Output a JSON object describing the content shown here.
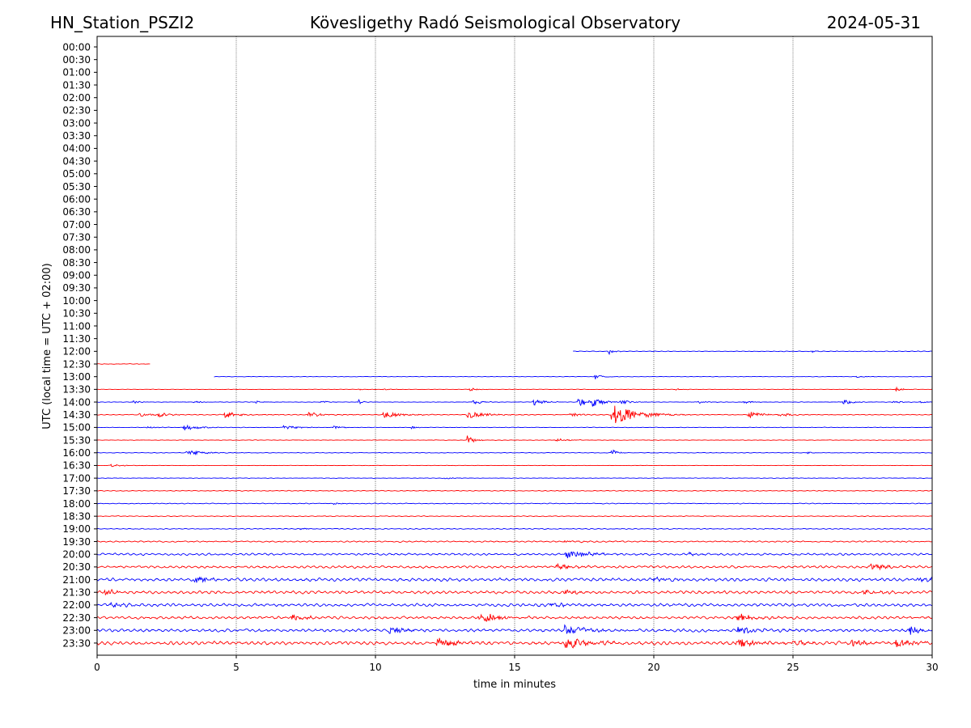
{
  "header": {
    "station": "HN_Station_PSZI2",
    "observatory": "Kövesligethy Radó Seismological Observatory",
    "date": "2024-05-31"
  },
  "chart_data": {
    "type": "line",
    "title": "Kövesligethy Radó Seismological Observatory",
    "xlabel": "time in minutes",
    "ylabel": "UTC (local time = UTC + 02:00)",
    "xlim": [
      0,
      30
    ],
    "x_ticks": [
      "0",
      "5",
      "10",
      "15",
      "20",
      "25",
      "30"
    ],
    "vertical_gridlines_at": [
      5,
      10,
      15,
      20,
      25
    ],
    "row_labels": [
      "00:00",
      "00:30",
      "01:00",
      "01:30",
      "02:00",
      "02:30",
      "03:00",
      "03:30",
      "04:00",
      "04:30",
      "05:00",
      "05:30",
      "06:00",
      "06:30",
      "07:00",
      "07:30",
      "08:00",
      "08:30",
      "09:00",
      "09:30",
      "10:00",
      "10:30",
      "11:00",
      "11:30",
      "12:00",
      "12:30",
      "13:00",
      "13:30",
      "14:00",
      "14:30",
      "15:00",
      "15:30",
      "16:00",
      "16:30",
      "17:00",
      "17:30",
      "18:00",
      "18:30",
      "19:00",
      "19:30",
      "20:00",
      "20:30",
      "21:00",
      "21:30",
      "22:00",
      "22:30",
      "23:00",
      "23:30"
    ],
    "colors": {
      "even": "#0000ff",
      "odd": "#ff0000"
    },
    "traces": [
      {
        "row": "12:00",
        "start": 17.1,
        "end": 30,
        "noise": 0.25,
        "events": [
          {
            "t": 18.4,
            "amp": 1.0,
            "dur": 0.15
          },
          {
            "t": 25.7,
            "amp": 0.4,
            "dur": 0.2
          }
        ]
      },
      {
        "row": "12:30",
        "start": 0,
        "end": 1.9,
        "noise": 0.25,
        "events": []
      },
      {
        "row": "13:00",
        "start": 4.2,
        "end": 30,
        "noise": 0.15,
        "events": [
          {
            "t": 17.9,
            "amp": 1.0,
            "dur": 0.2
          },
          {
            "t": 27.3,
            "amp": 0.3,
            "dur": 0.3
          }
        ]
      },
      {
        "row": "13:30",
        "start": 0,
        "end": 30,
        "noise": 0.15,
        "events": [
          {
            "t": 9.4,
            "amp": 0.3,
            "dur": 0.2
          },
          {
            "t": 10.3,
            "amp": 0.35,
            "dur": 0.2
          },
          {
            "t": 13.4,
            "amp": 0.5,
            "dur": 0.3
          },
          {
            "t": 20.8,
            "amp": 0.3,
            "dur": 0.2
          },
          {
            "t": 28.7,
            "amp": 0.6,
            "dur": 0.3
          }
        ]
      },
      {
        "row": "14:00",
        "start": 0,
        "end": 30,
        "noise": 0.2,
        "events": [
          {
            "t": 1.3,
            "amp": 0.4,
            "dur": 0.3
          },
          {
            "t": 3.5,
            "amp": 0.4,
            "dur": 0.3
          },
          {
            "t": 5.7,
            "amp": 0.4,
            "dur": 0.3
          },
          {
            "t": 8.0,
            "amp": 0.5,
            "dur": 0.3
          },
          {
            "t": 9.4,
            "amp": 0.8,
            "dur": 0.15
          },
          {
            "t": 13.5,
            "amp": 0.8,
            "dur": 0.3
          },
          {
            "t": 15.7,
            "amp": 1.2,
            "dur": 0.3
          },
          {
            "t": 17.3,
            "amp": 2.0,
            "dur": 0.3
          },
          {
            "t": 17.8,
            "amp": 2.0,
            "dur": 0.3
          },
          {
            "t": 18.8,
            "amp": 0.9,
            "dur": 0.3
          },
          {
            "t": 21.6,
            "amp": 0.5,
            "dur": 0.3
          },
          {
            "t": 23.2,
            "amp": 0.6,
            "dur": 0.3
          },
          {
            "t": 26.8,
            "amp": 1.0,
            "dur": 0.3
          },
          {
            "t": 28.6,
            "amp": 0.4,
            "dur": 0.3
          },
          {
            "t": 29.6,
            "amp": 0.3,
            "dur": 0.3
          }
        ]
      },
      {
        "row": "14:30",
        "start": 0,
        "end": 30,
        "noise": 0.3,
        "events": [
          {
            "t": 1.5,
            "amp": 0.7,
            "dur": 0.4
          },
          {
            "t": 2.2,
            "amp": 0.7,
            "dur": 0.4
          },
          {
            "t": 4.6,
            "amp": 1.0,
            "dur": 0.5
          },
          {
            "t": 7.6,
            "amp": 0.8,
            "dur": 0.5
          },
          {
            "t": 10.3,
            "amp": 1.3,
            "dur": 0.5
          },
          {
            "t": 13.3,
            "amp": 1.3,
            "dur": 0.6
          },
          {
            "t": 17.0,
            "amp": 0.6,
            "dur": 0.5
          },
          {
            "t": 18.5,
            "amp": 3.5,
            "dur": 0.8
          },
          {
            "t": 23.4,
            "amp": 1.2,
            "dur": 0.4
          },
          {
            "t": 24.5,
            "amp": 0.6,
            "dur": 0.5
          }
        ]
      },
      {
        "row": "15:00",
        "start": 0,
        "end": 30,
        "noise": 0.2,
        "events": [
          {
            "t": 1.8,
            "amp": 0.3,
            "dur": 0.4
          },
          {
            "t": 3.1,
            "amp": 1.0,
            "dur": 0.5
          },
          {
            "t": 6.7,
            "amp": 0.7,
            "dur": 0.5
          },
          {
            "t": 8.5,
            "amp": 0.5,
            "dur": 0.3
          },
          {
            "t": 11.3,
            "amp": 0.5,
            "dur": 0.2
          }
        ]
      },
      {
        "row": "15:30",
        "start": 0,
        "end": 30,
        "noise": 0.2,
        "events": [
          {
            "t": 13.3,
            "amp": 2.0,
            "dur": 0.2
          },
          {
            "t": 16.5,
            "amp": 0.5,
            "dur": 0.4
          }
        ]
      },
      {
        "row": "16:00",
        "start": 0,
        "end": 30,
        "noise": 0.2,
        "events": [
          {
            "t": 3.2,
            "amp": 0.9,
            "dur": 0.6
          },
          {
            "t": 18.5,
            "amp": 1.5,
            "dur": 0.15
          },
          {
            "t": 25.5,
            "amp": 0.3,
            "dur": 0.2
          }
        ]
      },
      {
        "row": "16:30",
        "start": 0,
        "end": 30,
        "noise": 0.15,
        "events": [
          {
            "t": 0.5,
            "amp": 0.4,
            "dur": 0.4
          }
        ]
      },
      {
        "row": "17:00",
        "start": 0,
        "end": 30,
        "noise": 0.2,
        "events": [
          {
            "t": 12.5,
            "amp": 0.3,
            "dur": 0.3
          }
        ]
      },
      {
        "row": "17:30",
        "start": 0,
        "end": 30,
        "noise": 0.3,
        "events": []
      },
      {
        "row": "18:00",
        "start": 0,
        "end": 30,
        "noise": 0.3,
        "events": [
          {
            "t": 8.5,
            "amp": 0.3,
            "dur": 0.3
          }
        ]
      },
      {
        "row": "18:30",
        "start": 0,
        "end": 30,
        "noise": 0.3,
        "events": []
      },
      {
        "row": "19:00",
        "start": 0,
        "end": 30,
        "noise": 0.35,
        "events": [
          {
            "t": 7.2,
            "amp": 0.3,
            "dur": 0.3
          }
        ]
      },
      {
        "row": "19:30",
        "start": 0,
        "end": 30,
        "noise": 0.5,
        "events": [
          {
            "t": 16.8,
            "amp": 0.5,
            "dur": 0.5
          }
        ]
      },
      {
        "row": "20:00",
        "start": 0,
        "end": 30,
        "noise": 0.8,
        "events": [
          {
            "t": 16.8,
            "amp": 1.5,
            "dur": 0.8
          },
          {
            "t": 21.2,
            "amp": 0.5,
            "dur": 0.4
          }
        ]
      },
      {
        "row": "20:30",
        "start": 0,
        "end": 30,
        "noise": 0.9,
        "events": [
          {
            "t": 16.5,
            "amp": 0.8,
            "dur": 0.6
          },
          {
            "t": 27.8,
            "amp": 0.8,
            "dur": 0.6
          }
        ]
      },
      {
        "row": "21:00",
        "start": 0,
        "end": 30,
        "noise": 1.2,
        "events": [
          {
            "t": 3.5,
            "amp": 0.8,
            "dur": 0.6
          },
          {
            "t": 20.0,
            "amp": 0.6,
            "dur": 0.6
          },
          {
            "t": 29.5,
            "amp": 0.8,
            "dur": 0.6
          }
        ]
      },
      {
        "row": "21:30",
        "start": 0,
        "end": 30,
        "noise": 1.1,
        "events": [
          {
            "t": 0.3,
            "amp": 1.0,
            "dur": 0.4
          },
          {
            "t": 16.8,
            "amp": 0.8,
            "dur": 0.5
          },
          {
            "t": 27.5,
            "amp": 0.8,
            "dur": 0.5
          }
        ]
      },
      {
        "row": "22:00",
        "start": 0,
        "end": 30,
        "noise": 1.1,
        "events": [
          {
            "t": 0.5,
            "amp": 0.8,
            "dur": 0.5
          },
          {
            "t": 16.3,
            "amp": 0.8,
            "dur": 0.6
          }
        ]
      },
      {
        "row": "22:30",
        "start": 0,
        "end": 30,
        "noise": 1.0,
        "events": [
          {
            "t": 7.0,
            "amp": 1.2,
            "dur": 0.5
          },
          {
            "t": 13.7,
            "amp": 1.8,
            "dur": 0.7
          },
          {
            "t": 23.0,
            "amp": 1.5,
            "dur": 0.6
          }
        ]
      },
      {
        "row": "23:00",
        "start": 0,
        "end": 30,
        "noise": 1.1,
        "events": [
          {
            "t": 10.5,
            "amp": 1.2,
            "dur": 0.6
          },
          {
            "t": 16.8,
            "amp": 1.5,
            "dur": 0.8
          },
          {
            "t": 23.0,
            "amp": 1.5,
            "dur": 0.6
          },
          {
            "t": 29.2,
            "amp": 1.8,
            "dur": 0.4
          }
        ]
      },
      {
        "row": "23:30",
        "start": 0,
        "end": 30,
        "noise": 1.3,
        "events": [
          {
            "t": 12.2,
            "amp": 1.5,
            "dur": 0.6
          },
          {
            "t": 16.8,
            "amp": 2.0,
            "dur": 0.8
          },
          {
            "t": 23.0,
            "amp": 2.2,
            "dur": 0.6
          },
          {
            "t": 25.0,
            "amp": 1.2,
            "dur": 0.4
          },
          {
            "t": 27.1,
            "amp": 1.5,
            "dur": 0.4
          },
          {
            "t": 28.7,
            "amp": 2.0,
            "dur": 0.5
          }
        ]
      }
    ]
  }
}
